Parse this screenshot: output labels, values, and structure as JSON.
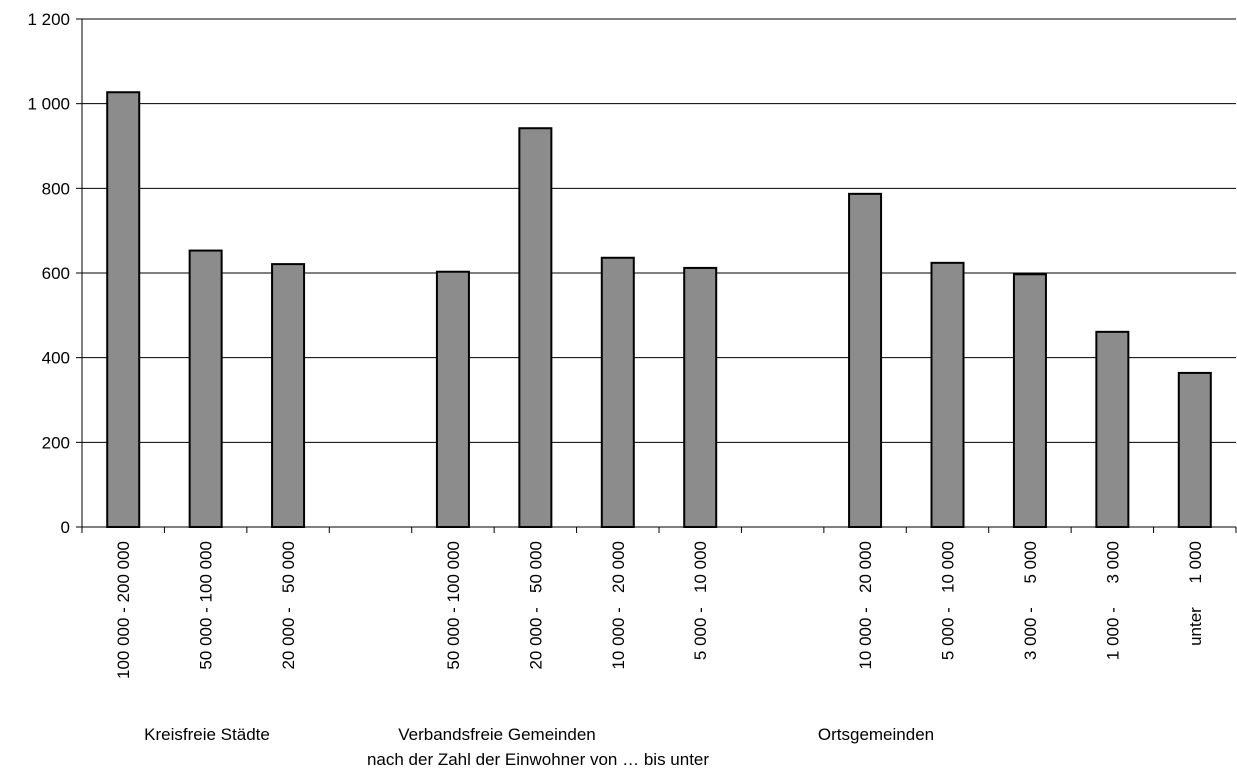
{
  "chart_data": {
    "type": "bar",
    "ylim": [
      0,
      1200
    ],
    "yticks": [
      0,
      200,
      400,
      600,
      800,
      1000,
      1200
    ],
    "ytick_labels": [
      "0",
      "200",
      "400",
      "600",
      "800",
      "1 000",
      "1 200"
    ],
    "grid": "horizontal",
    "categories": [
      "100 000 - 200 000",
      "50 000 - 100 000",
      "20 000 -   50 000",
      "",
      "50 000 - 100 000",
      "20 000 -   50 000",
      "10 000 -   20 000",
      "5 000 -   10 000",
      "",
      "10 000 -   20 000",
      "5 000 -   10 000",
      "3 000 -     5 000",
      "1 000 -     3 000",
      "unter     1 000"
    ],
    "values": [
      1027,
      653,
      621,
      null,
      603,
      942,
      636,
      612,
      null,
      787,
      624,
      597,
      461,
      364
    ],
    "bar_color": "#8c8c8c",
    "groups": [
      {
        "label": "Kreisfreie Städte",
        "from": 0,
        "to": 2
      },
      {
        "label": "Verbandsfreie Gemeinden",
        "from": 4,
        "to": 7
      },
      {
        "label": "Ortsgemeinden",
        "from": 9,
        "to": 13
      }
    ],
    "xlabel": "nach der Zahl der Einwohner von … bis unter"
  }
}
